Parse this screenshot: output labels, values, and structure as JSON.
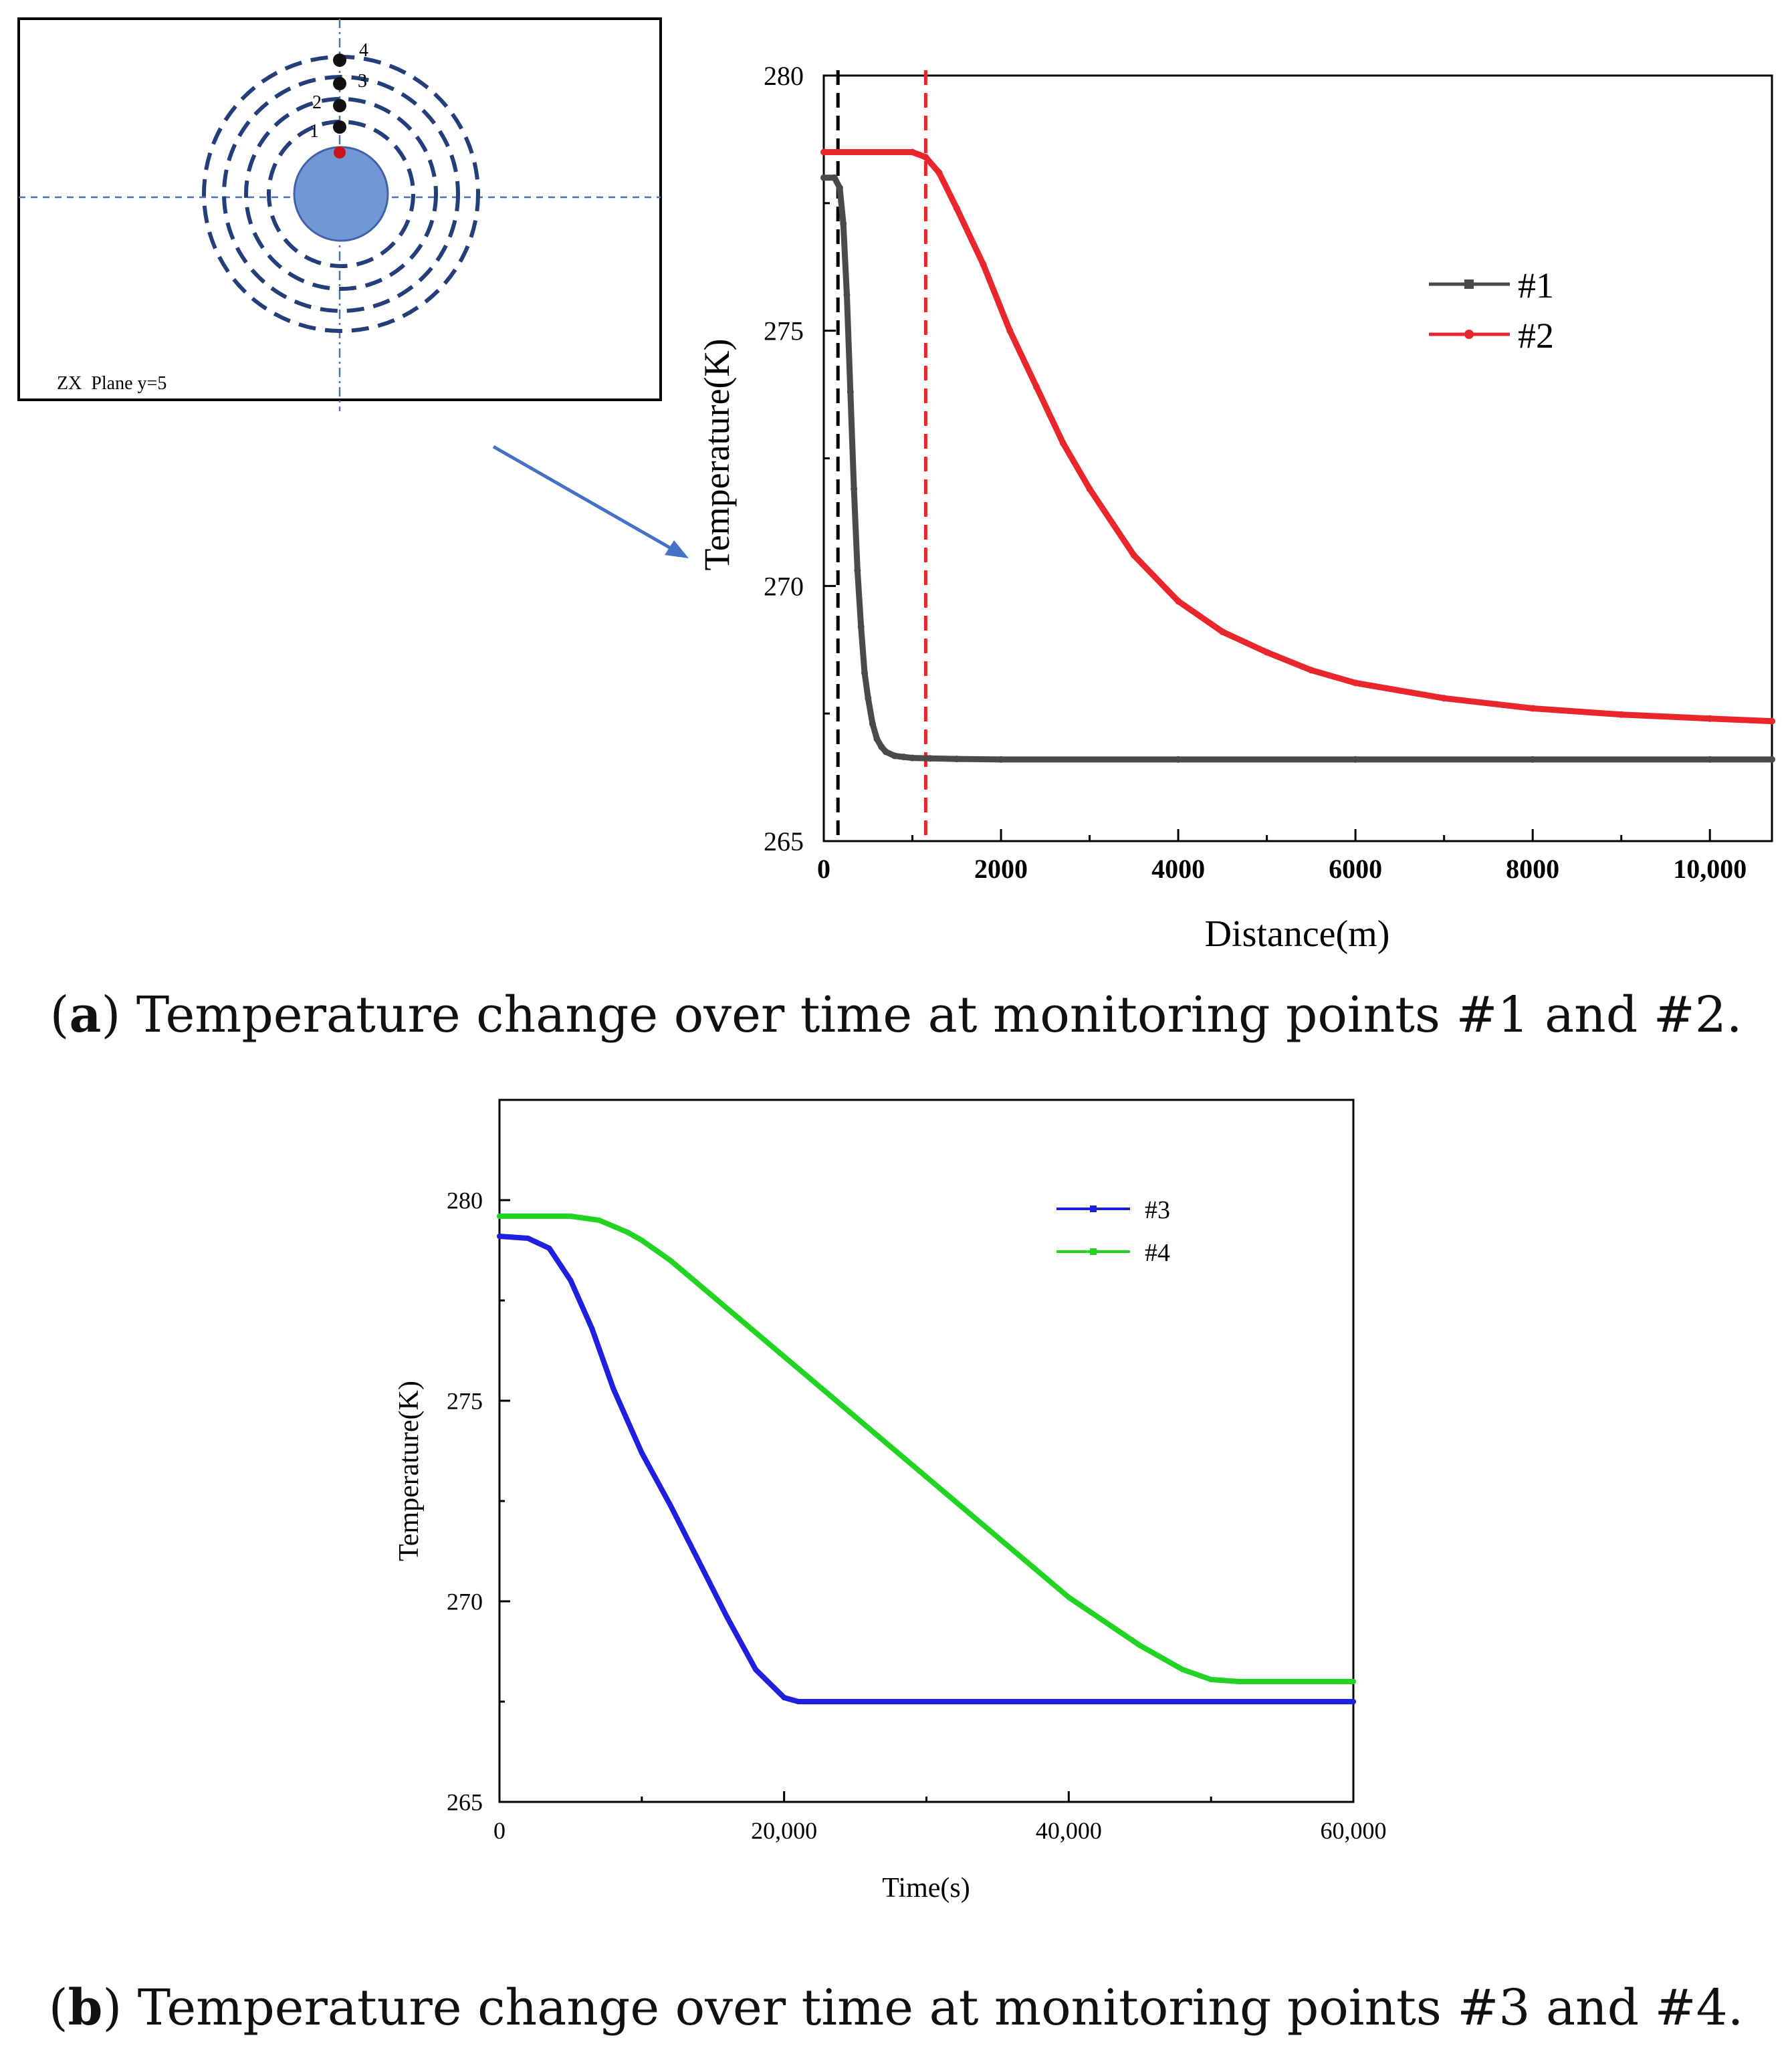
{
  "inset": {
    "label": "ZX  Plane y=5",
    "point_labels": [
      "1",
      "2",
      "3",
      "4"
    ]
  },
  "captions": {
    "a_letter": "a",
    "a_text": " Temperature change over time at monitoring points #1 and #2.",
    "b_letter": "b",
    "b_text": " Temperature change over time at monitoring points #3 and #4."
  },
  "chart_data": [
    {
      "id": "a",
      "type": "line",
      "title": "",
      "xlabel": "Distance(m)",
      "ylabel": "Temperature(K)",
      "xlim": [
        0,
        10700
      ],
      "ylim": [
        265,
        280
      ],
      "xticks": [
        0,
        2000,
        4000,
        6000,
        8000,
        10000
      ],
      "xtick_labels": [
        "0",
        "2000",
        "4000",
        "6000",
        "8000",
        "10,000"
      ],
      "yticks": [
        265,
        270,
        275,
        280
      ],
      "ytick_labels": [
        "265",
        "270",
        "275",
        "280"
      ],
      "legend_position": "upper-right",
      "vlines": [
        {
          "x": 160,
          "color": "#000000",
          "style": "dashed"
        },
        {
          "x": 1150,
          "color": "#e8262b",
          "style": "dashed"
        }
      ],
      "series": [
        {
          "name": "#1",
          "color": "#4a4a4a",
          "x": [
            0,
            120,
            180,
            220,
            260,
            300,
            340,
            380,
            420,
            460,
            500,
            550,
            600,
            650,
            700,
            800,
            900,
            1000,
            1200,
            1500,
            2000,
            4000,
            6000,
            8000,
            10000,
            10700
          ],
          "y": [
            278.0,
            278.0,
            277.8,
            277.1,
            275.7,
            273.8,
            271.9,
            270.3,
            269.2,
            268.3,
            267.8,
            267.3,
            267.0,
            266.85,
            266.75,
            266.67,
            266.65,
            266.63,
            266.62,
            266.61,
            266.6,
            266.6,
            266.6,
            266.6,
            266.6,
            266.6
          ]
        },
        {
          "name": "#2",
          "color": "#e8262b",
          "x": [
            0,
            1000,
            1150,
            1300,
            1500,
            1800,
            2100,
            2400,
            2700,
            3000,
            3500,
            4000,
            4500,
            5000,
            5500,
            6000,
            7000,
            8000,
            9000,
            10000,
            10700
          ],
          "y": [
            278.5,
            278.5,
            278.4,
            278.1,
            277.4,
            276.3,
            275.0,
            273.9,
            272.8,
            271.9,
            270.6,
            269.7,
            269.1,
            268.7,
            268.35,
            268.1,
            267.8,
            267.6,
            267.48,
            267.4,
            267.35
          ]
        }
      ]
    },
    {
      "id": "b",
      "type": "line",
      "title": "",
      "xlabel": "Time(s)",
      "ylabel": "Temperature(K)",
      "xlim": [
        0,
        60000
      ],
      "ylim": [
        265,
        282.5
      ],
      "xticks": [
        0,
        20000,
        40000,
        60000
      ],
      "xtick_labels": [
        "0",
        "20,000",
        "40,000",
        "60,000"
      ],
      "yticks": [
        265,
        270,
        275,
        280
      ],
      "ytick_labels": [
        "265",
        "270",
        "275",
        "280"
      ],
      "legend_position": "upper-right",
      "series": [
        {
          "name": "#3",
          "color": "#1f1fe0",
          "x": [
            0,
            2000,
            3500,
            5000,
            6500,
            8000,
            10000,
            12000,
            14000,
            16000,
            18000,
            20000,
            21000,
            22000,
            30000,
            40000,
            50000,
            60000
          ],
          "y": [
            279.1,
            279.05,
            278.8,
            278.0,
            276.8,
            275.3,
            273.7,
            272.4,
            271.0,
            269.6,
            268.3,
            267.6,
            267.5,
            267.5,
            267.5,
            267.5,
            267.5,
            267.5
          ]
        },
        {
          "name": "#4",
          "color": "#22d422",
          "x": [
            0,
            5000,
            7000,
            9000,
            10000,
            12000,
            15000,
            20000,
            25000,
            30000,
            35000,
            40000,
            45000,
            48000,
            50000,
            52000,
            54000,
            60000
          ],
          "y": [
            279.6,
            279.6,
            279.5,
            279.2,
            279.0,
            278.5,
            277.6,
            276.1,
            274.6,
            273.1,
            271.6,
            270.1,
            268.9,
            268.3,
            268.05,
            268.0,
            268.0,
            268.0
          ]
        }
      ]
    }
  ]
}
